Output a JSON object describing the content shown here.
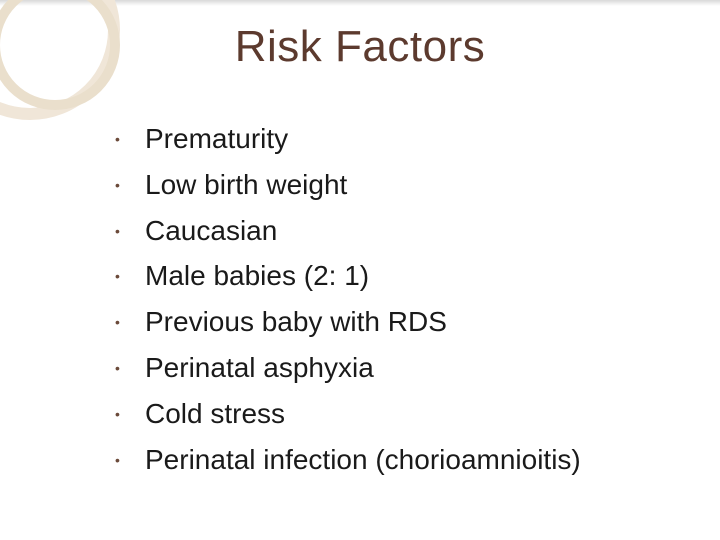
{
  "slide": {
    "title": "Risk Factors",
    "title_color": "#5c3a2e",
    "title_fontsize": 44,
    "background_color": "#ffffff",
    "bullet_glyph": "•",
    "bullet_color": "#6b4a3a",
    "item_fontsize": 28,
    "item_color": "#1a1a1a",
    "items": [
      "Prematurity",
      "Low birth weight",
      "Caucasian",
      "Male babies (2: 1)",
      "Previous baby with RDS",
      "Perinatal asphyxia",
      "Cold stress",
      "Perinatal infection (chorioamnioitis)"
    ],
    "decoration": {
      "ring1_color": "#f0e6d8",
      "ring2_color": "#eadfcc"
    }
  }
}
